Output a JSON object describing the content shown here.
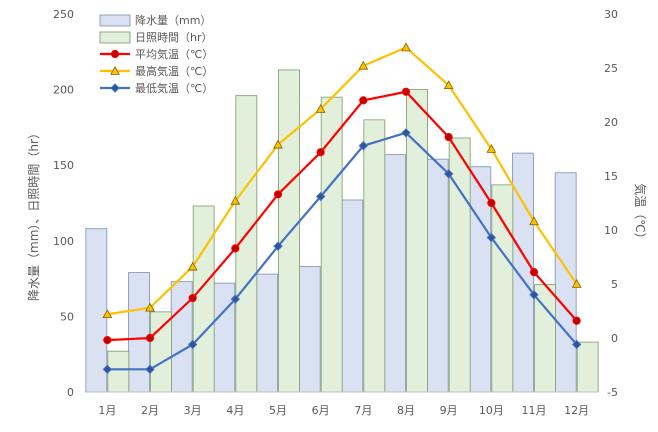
{
  "chart_data": {
    "type": "bar",
    "categories": [
      "1月",
      "2月",
      "3月",
      "4月",
      "5月",
      "6月",
      "7月",
      "8月",
      "9月",
      "10月",
      "11月",
      "12月"
    ],
    "y_left": {
      "label": "降水量（mm）、日照時間（hr）",
      "ylim": [
        0,
        250
      ],
      "ticks": [
        "0",
        "50",
        "100",
        "150",
        "200",
        "250"
      ]
    },
    "y_right": {
      "label": "気温（℃）",
      "ylim": [
        -5,
        30
      ],
      "ticks": [
        "-5",
        "0",
        "5",
        "10",
        "15",
        "20",
        "25",
        "30"
      ]
    },
    "bar_series": [
      {
        "name": "降水量（mm）",
        "color_fill": "#d9e1f2",
        "color_stroke": "#7f8fb0",
        "values": [
          108,
          79,
          73,
          72,
          78,
          83,
          127,
          157,
          154,
          149,
          158,
          145
        ]
      },
      {
        "name": "日照時間（hr）",
        "color_fill": "#e2efda",
        "color_stroke": "#7a9a6a",
        "values": [
          27,
          53,
          123,
          196,
          213,
          195,
          180,
          200,
          168,
          137,
          71,
          33
        ]
      }
    ],
    "line_series": [
      {
        "name": "平均気温（℃）",
        "color": "#ff0000",
        "marker": "circle",
        "marker_fill": "#c00000",
        "values": [
          -0.2,
          0.0,
          3.7,
          8.3,
          13.3,
          17.2,
          22.0,
          22.8,
          18.6,
          12.5,
          6.1,
          1.6
        ]
      },
      {
        "name": "最高気温（℃）",
        "color": "#ffc000",
        "marker": "triangle",
        "marker_fill": "#ffc000",
        "values": [
          2.2,
          2.8,
          6.6,
          12.7,
          17.9,
          21.2,
          25.2,
          26.9,
          23.4,
          17.5,
          10.8,
          5.0
        ]
      },
      {
        "name": "最低気温（℃）",
        "color": "#4472c4",
        "marker": "diamond",
        "marker_fill": "#2f5597",
        "values": [
          -2.9,
          -2.9,
          -0.6,
          3.6,
          8.5,
          13.1,
          17.8,
          19.0,
          15.2,
          9.3,
          4.0,
          -0.6
        ]
      }
    ],
    "grid": false,
    "legend_position": "top-left"
  }
}
